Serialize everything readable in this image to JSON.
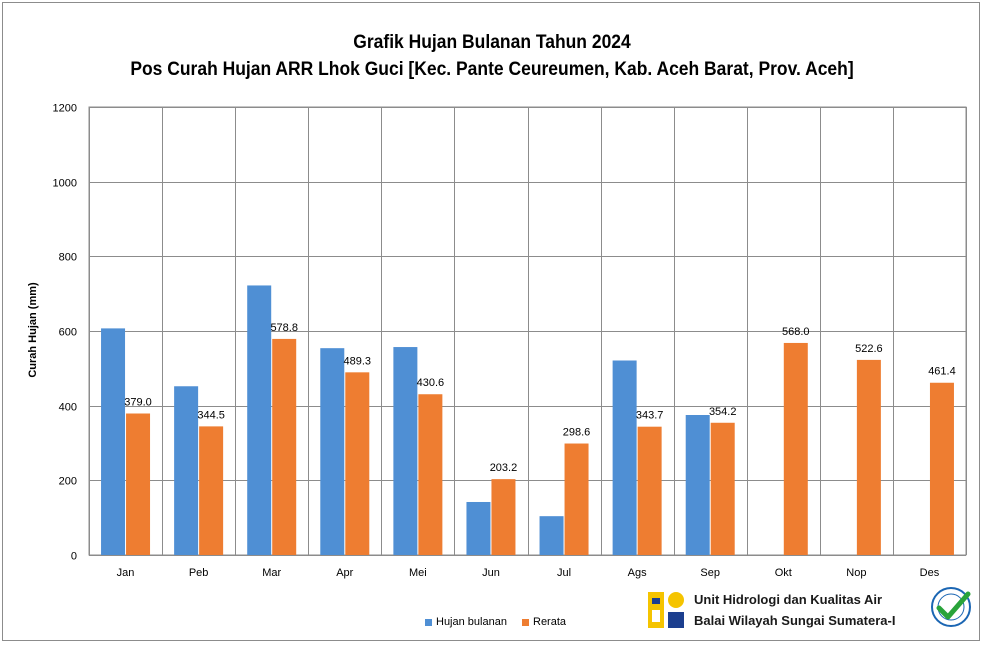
{
  "chart_data": {
    "type": "bar",
    "title": "Grafik Hujan  Bulanan Tahun 2024",
    "subtitle": "Pos Curah Hujan ARR Lhok Guci [Kec. Pante Ceureumen, Kab. Aceh Barat, Prov. Aceh]",
    "xlabel": "",
    "ylabel": "Curah Hujan (mm)",
    "ylim": [
      0,
      1200
    ],
    "yticks": [
      0,
      200,
      400,
      600,
      800,
      1000,
      1200
    ],
    "grid": true,
    "legend_position": "bottom",
    "categories": [
      "Jan",
      "Peb",
      "Mar",
      "Apr",
      "Mei",
      "Jun",
      "Jul",
      "Ags",
      "Sep",
      "Okt",
      "Nop",
      "Des"
    ],
    "series": [
      {
        "name": "Hujan bulanan",
        "color": "#4f8fd4",
        "values": [
          607,
          452,
          722,
          554,
          557,
          142,
          104,
          521,
          375,
          null,
          null,
          null
        ],
        "labels": [
          "",
          "",
          "",
          "",
          "",
          "",
          "",
          "",
          "",
          "",
          "",
          ""
        ]
      },
      {
        "name": "Rerata",
        "color": "#ee7d31",
        "values": [
          379.0,
          344.5,
          578.8,
          489.3,
          430.6,
          203.2,
          298.6,
          343.7,
          354.2,
          568.0,
          522.6,
          461.4
        ],
        "labels": [
          "379.0",
          "344.5",
          "578.8",
          "489.3",
          "430.6",
          "203.2",
          "298.6",
          "343.7",
          "354.2",
          "568.0",
          "522.6",
          "461.4"
        ]
      }
    ]
  },
  "footer": {
    "org_line1": "Unit Hidrologi dan Kualitas Air",
    "org_line2": "Balai Wilayah Sungai Sumatera-I",
    "logo_icon": "pupr-logo-icon",
    "cert_icon": "iso-certified-badge-icon"
  }
}
